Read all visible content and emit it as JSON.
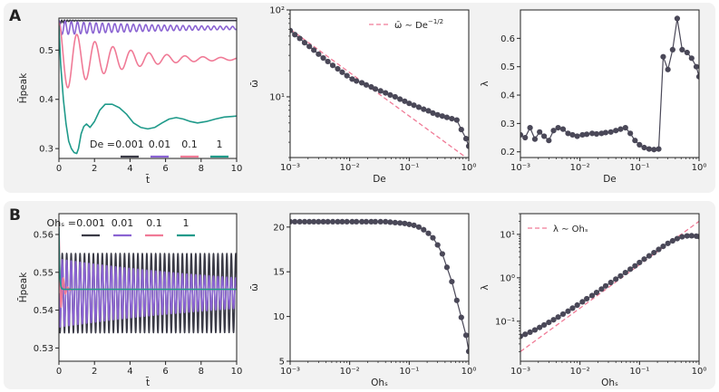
{
  "panels": [
    {
      "label": "A"
    },
    {
      "label": "B"
    }
  ],
  "colors": {
    "de_0001": "#3a3a46",
    "de_001": "#8a63d2",
    "de_01": "#f07a96",
    "de_1": "#1f9a8a",
    "data_points": "#4a4858",
    "ref_line": "#f07a96",
    "axes_bg": "#ffffff",
    "panel_bg": "#f2f2f2"
  },
  "chart_data": [
    {
      "id": "A1",
      "type": "line",
      "xlabel": "t̄",
      "ylabel": "H̄peak",
      "xlim": [
        0,
        10
      ],
      "ylim": [
        0.28,
        0.565
      ],
      "xticks": [
        0,
        2,
        4,
        6,
        8,
        10
      ],
      "yticks": [
        0.3,
        0.4,
        0.5
      ],
      "xtick_labels": [
        "0",
        "2",
        "4",
        "6",
        "8",
        "10"
      ],
      "ytick_labels": [
        "0.3",
        "0.4",
        "0.5"
      ],
      "legend_title": "De =",
      "legend_position": "lower-right",
      "series": [
        {
          "name": "0.001",
          "color_key": "de_0001",
          "model": {
            "start": 0.56,
            "final": 0.56,
            "amp": 0.004,
            "decay": 2.0,
            "omega": 40,
            "phase": 0
          }
        },
        {
          "name": "0.01",
          "color_key": "de_001",
          "model": {
            "start": 0.56,
            "final": 0.545,
            "amp": 0.014,
            "decay": 0.15,
            "omega": 18,
            "phase": 0
          }
        },
        {
          "name": "0.1",
          "color_key": "de_01",
          "model": {
            "start": 0.555,
            "final": 0.482,
            "amp": 0.07,
            "decay": 0.34,
            "omega": 6.2,
            "phase": 0
          }
        },
        {
          "name": "1",
          "color_key": "de_1",
          "points": [
            [
              0,
              0.55
            ],
            [
              0.1,
              0.47
            ],
            [
              0.25,
              0.4
            ],
            [
              0.4,
              0.35
            ],
            [
              0.55,
              0.315
            ],
            [
              0.7,
              0.3
            ],
            [
              0.85,
              0.292
            ],
            [
              1.0,
              0.29
            ],
            [
              1.1,
              0.3
            ],
            [
              1.25,
              0.33
            ],
            [
              1.4,
              0.345
            ],
            [
              1.55,
              0.35
            ],
            [
              1.75,
              0.343
            ],
            [
              2.0,
              0.355
            ],
            [
              2.3,
              0.378
            ],
            [
              2.6,
              0.39
            ],
            [
              3.0,
              0.39
            ],
            [
              3.4,
              0.383
            ],
            [
              3.8,
              0.37
            ],
            [
              4.2,
              0.352
            ],
            [
              4.6,
              0.343
            ],
            [
              5.0,
              0.34
            ],
            [
              5.4,
              0.343
            ],
            [
              5.8,
              0.352
            ],
            [
              6.2,
              0.36
            ],
            [
              6.6,
              0.363
            ],
            [
              7.0,
              0.36
            ],
            [
              7.4,
              0.355
            ],
            [
              7.8,
              0.352
            ],
            [
              8.3,
              0.355
            ],
            [
              8.8,
              0.36
            ],
            [
              9.3,
              0.364
            ],
            [
              10,
              0.366
            ]
          ]
        }
      ]
    },
    {
      "id": "A2",
      "type": "scatter",
      "scale": "log-log",
      "xlabel": "De",
      "ylabel": "ω̄",
      "xlim": [
        0.001,
        1
      ],
      "ylim": [
        2.0,
        100
      ],
      "xticks": [
        0.001,
        0.01,
        0.1,
        1
      ],
      "yticks": [
        10,
        100
      ],
      "xtick_labels": [
        "10⁻³",
        "10⁻²",
        "10⁻¹",
        "10⁰"
      ],
      "ytick_labels": [
        "10¹",
        "10²"
      ],
      "legend_position": "top-right",
      "reference": {
        "label": "ω̄ ∼ De^(−1/2)",
        "label_text": "ω̄ ∼  De",
        "label_sup": "−1/2",
        "coef": 1.9,
        "exponent": -0.5
      },
      "series": [
        {
          "name": "ω̄",
          "x": [
            0.001,
            0.0012,
            0.00145,
            0.00175,
            0.0021,
            0.0025,
            0.003,
            0.0036,
            0.0043,
            0.0052,
            0.0063,
            0.0075,
            0.009,
            0.011,
            0.013,
            0.016,
            0.019,
            0.023,
            0.027,
            0.033,
            0.04,
            0.048,
            0.058,
            0.07,
            0.084,
            0.1,
            0.12,
            0.145,
            0.175,
            0.21,
            0.25,
            0.3,
            0.36,
            0.43,
            0.52,
            0.63,
            0.75,
            0.9,
            1.0
          ],
          "y": [
            58,
            52,
            47,
            42,
            38,
            34.5,
            31,
            28,
            25.5,
            23,
            21,
            19.2,
            17.5,
            16,
            15.2,
            14.5,
            13.7,
            13,
            12.3,
            11.7,
            11.1,
            10.5,
            10,
            9.4,
            8.9,
            8.4,
            8,
            7.6,
            7.2,
            6.9,
            6.5,
            6.2,
            6,
            5.8,
            5.6,
            5.4,
            4.2,
            3.3,
            2.7
          ]
        }
      ]
    },
    {
      "id": "A3",
      "type": "scatter",
      "scale": "semilogx",
      "xlabel": "De",
      "ylabel": "λ",
      "xlim": [
        0.001,
        1
      ],
      "ylim": [
        0.18,
        0.7
      ],
      "xticks": [
        0.001,
        0.01,
        0.1,
        1
      ],
      "yticks": [
        0.2,
        0.3,
        0.4,
        0.5,
        0.6
      ],
      "xtick_labels": [
        "10⁻³",
        "10⁻²",
        "10⁻¹",
        "10⁰"
      ],
      "ytick_labels": [
        "0.2",
        "0.3",
        "0.4",
        "0.5",
        "0.6"
      ],
      "series": [
        {
          "name": "λ",
          "x": [
            0.001,
            0.0012,
            0.00145,
            0.00175,
            0.0021,
            0.0025,
            0.003,
            0.0036,
            0.0043,
            0.0052,
            0.0063,
            0.0075,
            0.009,
            0.011,
            0.013,
            0.016,
            0.019,
            0.023,
            0.027,
            0.033,
            0.04,
            0.048,
            0.058,
            0.07,
            0.084,
            0.1,
            0.12,
            0.145,
            0.175,
            0.21,
            0.25,
            0.3,
            0.36,
            0.43,
            0.52,
            0.63,
            0.75,
            0.9,
            1.0
          ],
          "y": [
            0.26,
            0.25,
            0.285,
            0.245,
            0.27,
            0.255,
            0.24,
            0.275,
            0.285,
            0.28,
            0.265,
            0.26,
            0.255,
            0.26,
            0.262,
            0.265,
            0.263,
            0.265,
            0.268,
            0.27,
            0.275,
            0.28,
            0.285,
            0.265,
            0.24,
            0.225,
            0.215,
            0.21,
            0.208,
            0.21,
            0.535,
            0.49,
            0.56,
            0.67,
            0.56,
            0.55,
            0.53,
            0.5,
            0.465
          ]
        }
      ]
    },
    {
      "id": "B1",
      "type": "line",
      "xlabel": "t̄",
      "ylabel": "H̄peak",
      "xlim": [
        0,
        10
      ],
      "ylim": [
        0.5265,
        0.5655
      ],
      "xticks": [
        0,
        2,
        4,
        6,
        8,
        10
      ],
      "yticks": [
        0.53,
        0.54,
        0.55,
        0.56
      ],
      "xtick_labels": [
        "0",
        "2",
        "4",
        "6",
        "8",
        "10"
      ],
      "ytick_labels": [
        "0.53",
        "0.54",
        "0.55",
        "0.56"
      ],
      "legend_title": "Ohₛ =",
      "legend_position": "top-right",
      "series": [
        {
          "name": "0.001",
          "color_key": "de_0001",
          "model": {
            "start": 0.5445,
            "final": 0.5445,
            "amp": 0.0105,
            "decay": 0.0005,
            "omega": 25.1,
            "phase": 1.5708
          }
        },
        {
          "name": "0.01",
          "color_key": "de_001",
          "model": {
            "start": 0.5445,
            "final": 0.5445,
            "amp": 0.009,
            "decay": 0.08,
            "omega": 25.1,
            "phase": 1.5708
          }
        },
        {
          "name": "0.1",
          "color_key": "de_01",
          "model": {
            "start": 0.562,
            "final": 0.5455,
            "amp": 0.012,
            "decay": 6.0,
            "omega": 25.1,
            "phase": 0
          }
        },
        {
          "name": "1",
          "color_key": "de_1",
          "model": {
            "start": 0.562,
            "final": 0.5455,
            "amp": 0.0,
            "decay": 13.0,
            "omega": 0,
            "phase": 0
          }
        }
      ]
    },
    {
      "id": "B2",
      "type": "scatter",
      "scale": "semilogx",
      "xlabel": "Ohₛ",
      "ylabel": "ω̄",
      "xlim": [
        0.001,
        1
      ],
      "ylim": [
        5,
        21.5
      ],
      "xticks": [
        0.001,
        0.01,
        0.1,
        1
      ],
      "yticks": [
        5,
        10,
        15,
        20
      ],
      "xtick_labels": [
        "10⁻³",
        "10⁻²",
        "10⁻¹",
        "10⁰"
      ],
      "ytick_labels": [
        "5",
        "10",
        "15",
        "20"
      ],
      "series": [
        {
          "name": "ω̄",
          "x": [
            0.001,
            0.0012,
            0.00145,
            0.00175,
            0.0021,
            0.0025,
            0.003,
            0.0036,
            0.0043,
            0.0052,
            0.0063,
            0.0075,
            0.009,
            0.011,
            0.013,
            0.016,
            0.019,
            0.023,
            0.027,
            0.033,
            0.04,
            0.048,
            0.058,
            0.07,
            0.084,
            0.1,
            0.12,
            0.145,
            0.175,
            0.21,
            0.25,
            0.3,
            0.36,
            0.43,
            0.52,
            0.63,
            0.75,
            0.9,
            1.0
          ],
          "y": [
            20.6,
            20.6,
            20.6,
            20.6,
            20.6,
            20.6,
            20.6,
            20.6,
            20.6,
            20.6,
            20.6,
            20.6,
            20.6,
            20.6,
            20.6,
            20.6,
            20.6,
            20.6,
            20.6,
            20.6,
            20.6,
            20.55,
            20.5,
            20.45,
            20.4,
            20.3,
            20.2,
            20.0,
            19.7,
            19.3,
            18.8,
            18.0,
            17.0,
            15.5,
            13.9,
            11.8,
            9.9,
            7.9,
            6.1
          ]
        }
      ]
    },
    {
      "id": "B3",
      "type": "scatter",
      "scale": "log-log",
      "xlabel": "Ohₛ",
      "ylabel": "λ",
      "xlim": [
        0.001,
        1
      ],
      "ylim": [
        0.012,
        30
      ],
      "xticks": [
        0.001,
        0.01,
        0.1,
        1
      ],
      "yticks": [
        0.1,
        1,
        10
      ],
      "xtick_labels": [
        "10⁻³",
        "10⁻²",
        "10⁻¹",
        "10⁰"
      ],
      "ytick_labels": [
        "10⁻¹",
        "10⁰",
        "10¹"
      ],
      "legend_position": "top-left",
      "reference": {
        "label": "λ ∼ Ohₛ",
        "label_text": "λ ∼ Ohₛ",
        "coef": 20,
        "exponent": 1
      },
      "series": [
        {
          "name": "λ",
          "x": [
            0.001,
            0.0012,
            0.00145,
            0.00175,
            0.0021,
            0.0025,
            0.003,
            0.0036,
            0.0043,
            0.0052,
            0.0063,
            0.0075,
            0.009,
            0.011,
            0.013,
            0.016,
            0.019,
            0.023,
            0.027,
            0.033,
            0.04,
            0.048,
            0.058,
            0.07,
            0.084,
            0.1,
            0.12,
            0.145,
            0.175,
            0.21,
            0.25,
            0.3,
            0.36,
            0.43,
            0.52,
            0.63,
            0.75,
            0.9,
            1.0
          ],
          "y": [
            0.045,
            0.05,
            0.056,
            0.063,
            0.072,
            0.082,
            0.094,
            0.108,
            0.125,
            0.146,
            0.17,
            0.2,
            0.235,
            0.28,
            0.33,
            0.39,
            0.46,
            0.55,
            0.65,
            0.78,
            0.93,
            1.1,
            1.32,
            1.58,
            1.88,
            2.25,
            2.7,
            3.2,
            3.8,
            4.5,
            5.3,
            6.2,
            7.1,
            8.0,
            8.8,
            9.2,
            9.3,
            9.1,
            8.9
          ]
        }
      ]
    }
  ]
}
